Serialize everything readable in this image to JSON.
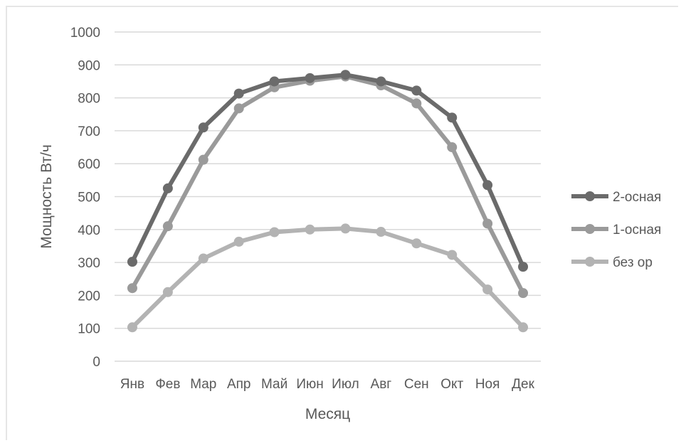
{
  "chart_data": {
    "type": "line",
    "title": "",
    "xlabel": "Месяц",
    "ylabel": "Мощность Вт/ч",
    "categories": [
      "Янв",
      "Фев",
      "Мар",
      "Апр",
      "Май",
      "Июн",
      "Июл",
      "Авг",
      "Сен",
      "Окт",
      "Ноя",
      "Дек"
    ],
    "ylim": [
      0,
      1000
    ],
    "yticks": [
      0,
      100,
      200,
      300,
      400,
      500,
      600,
      700,
      800,
      900,
      1000
    ],
    "grid": true,
    "legend_position": "right",
    "series": [
      {
        "name": "2-осная",
        "color": "#6b6b6b",
        "values": [
          302,
          525,
          710,
          813,
          850,
          860,
          870,
          850,
          822,
          740,
          535,
          287
        ]
      },
      {
        "name": "1-осная",
        "color": "#9a9a9a",
        "values": [
          222,
          410,
          612,
          768,
          832,
          852,
          865,
          838,
          783,
          650,
          418,
          207
        ]
      },
      {
        "name": "без ор",
        "color": "#b3b3b3",
        "values": [
          103,
          210,
          312,
          363,
          392,
          400,
          403,
          393,
          358,
          323,
          218,
          103
        ]
      }
    ]
  }
}
